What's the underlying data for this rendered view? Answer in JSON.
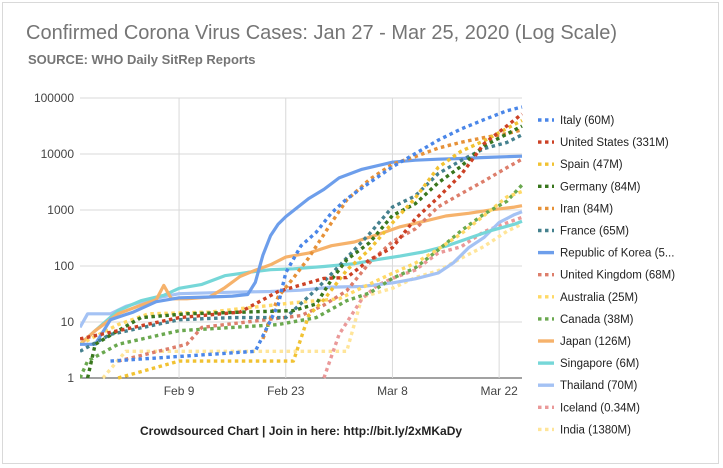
{
  "chart_data": {
    "type": "line",
    "title": "Confirmed Corona Virus Cases: Jan 27 - Mar 25, 2020 (Log Scale)",
    "subtitle": "SOURCE: WHO Daily SitRep Reports",
    "footer": "Crowdsourced Chart | Join in here: http://bit.ly/2xMKaDy",
    "x_scale": "date",
    "y_scale": "log",
    "xlim": [
      "2020-01-27",
      "2020-03-25"
    ],
    "ylim": [
      1,
      100000
    ],
    "x_ticks": [
      {
        "date": "2020-02-09",
        "label": "Feb 9"
      },
      {
        "date": "2020-02-23",
        "label": "Feb 23"
      },
      {
        "date": "2020-03-08",
        "label": "Mar 8"
      },
      {
        "date": "2020-03-22",
        "label": "Mar 22"
      }
    ],
    "y_ticks": [
      {
        "value": 1,
        "label": "1"
      },
      {
        "value": 10,
        "label": "10"
      },
      {
        "value": 100,
        "label": "100"
      },
      {
        "value": 1000,
        "label": "1000"
      },
      {
        "value": 10000,
        "label": "10000"
      },
      {
        "value": 100000,
        "label": "100000"
      }
    ],
    "grid": true,
    "legend_position": "right",
    "series": [
      {
        "name": "Italy (60M)",
        "color": "#4a86e8",
        "style": "dotted",
        "points": [
          [
            "2020-01-31",
            2
          ],
          [
            "2020-02-19",
            3
          ],
          [
            "2020-02-22",
            20
          ],
          [
            "2020-02-23",
            76
          ],
          [
            "2020-02-25",
            229
          ],
          [
            "2020-02-27",
            400
          ],
          [
            "2020-02-29",
            888
          ],
          [
            "2020-03-02",
            1577
          ],
          [
            "2020-03-05",
            3089
          ],
          [
            "2020-03-08",
            5883
          ],
          [
            "2020-03-11",
            10149
          ],
          [
            "2020-03-14",
            17660
          ],
          [
            "2020-03-17",
            27980
          ],
          [
            "2020-03-20",
            41035
          ],
          [
            "2020-03-23",
            59138
          ],
          [
            "2020-03-25",
            69176
          ]
        ]
      },
      {
        "name": "United States (331M)",
        "color": "#cc4125",
        "style": "dotted",
        "points": [
          [
            "2020-01-27",
            5
          ],
          [
            "2020-02-01",
            7
          ],
          [
            "2020-02-09",
            12
          ],
          [
            "2020-02-17",
            15
          ],
          [
            "2020-02-22",
            35
          ],
          [
            "2020-02-28",
            60
          ],
          [
            "2020-03-02",
            62
          ],
          [
            "2020-03-05",
            129
          ],
          [
            "2020-03-08",
            213
          ],
          [
            "2020-03-11",
            696
          ],
          [
            "2020-03-14",
            1678
          ],
          [
            "2020-03-17",
            4226
          ],
          [
            "2020-03-20",
            15219
          ],
          [
            "2020-03-23",
            31573
          ],
          [
            "2020-03-25",
            51914
          ]
        ]
      },
      {
        "name": "Spain (47M)",
        "color": "#f1c232",
        "style": "dotted",
        "points": [
          [
            "2020-02-01",
            1
          ],
          [
            "2020-02-09",
            2
          ],
          [
            "2020-02-24",
            2
          ],
          [
            "2020-02-26",
            13
          ],
          [
            "2020-02-28",
            25
          ],
          [
            "2020-03-02",
            84
          ],
          [
            "2020-03-05",
            198
          ],
          [
            "2020-03-08",
            589
          ],
          [
            "2020-03-11",
            1639
          ],
          [
            "2020-03-14",
            5753
          ],
          [
            "2020-03-17",
            11178
          ],
          [
            "2020-03-20",
            17147
          ],
          [
            "2020-03-23",
            28572
          ],
          [
            "2020-03-25",
            39673
          ]
        ]
      },
      {
        "name": "Germany (84M)",
        "color": "#38761d",
        "style": "dotted",
        "points": [
          [
            "2020-01-28",
            1
          ],
          [
            "2020-01-29",
            4
          ],
          [
            "2020-02-01",
            7
          ],
          [
            "2020-02-04",
            12
          ],
          [
            "2020-02-10",
            14
          ],
          [
            "2020-02-24",
            16
          ],
          [
            "2020-02-27",
            21
          ],
          [
            "2020-02-29",
            57
          ],
          [
            "2020-03-02",
            129
          ],
          [
            "2020-03-05",
            262
          ],
          [
            "2020-03-08",
            795
          ],
          [
            "2020-03-11",
            1296
          ],
          [
            "2020-03-14",
            3062
          ],
          [
            "2020-03-17",
            6012
          ],
          [
            "2020-03-20",
            13957
          ],
          [
            "2020-03-23",
            22672
          ],
          [
            "2020-03-25",
            31554
          ]
        ]
      },
      {
        "name": "Iran (84M)",
        "color": "#e69138",
        "style": "dotted",
        "points": [
          [
            "2020-02-20",
            5
          ],
          [
            "2020-02-22",
            28
          ],
          [
            "2020-02-24",
            61
          ],
          [
            "2020-02-26",
            139
          ],
          [
            "2020-02-29",
            593
          ],
          [
            "2020-03-02",
            1501
          ],
          [
            "2020-03-05",
            3513
          ],
          [
            "2020-03-08",
            6566
          ],
          [
            "2020-03-11",
            9000
          ],
          [
            "2020-03-14",
            12729
          ],
          [
            "2020-03-17",
            16169
          ],
          [
            "2020-03-20",
            19644
          ],
          [
            "2020-03-23",
            23049
          ],
          [
            "2020-03-25",
            27017
          ]
        ]
      },
      {
        "name": "France (65M)",
        "color": "#45818e",
        "style": "dotted",
        "points": [
          [
            "2020-01-27",
            3
          ],
          [
            "2020-01-31",
            6
          ],
          [
            "2020-02-09",
            11
          ],
          [
            "2020-02-16",
            12
          ],
          [
            "2020-02-23",
            12
          ],
          [
            "2020-02-27",
            38
          ],
          [
            "2020-03-01",
            100
          ],
          [
            "2020-03-05",
            377
          ],
          [
            "2020-03-08",
            1126
          ],
          [
            "2020-03-11",
            1784
          ],
          [
            "2020-03-14",
            4469
          ],
          [
            "2020-03-17",
            7652
          ],
          [
            "2020-03-20",
            12475
          ],
          [
            "2020-03-23",
            16018
          ],
          [
            "2020-03-25",
            22025
          ]
        ]
      },
      {
        "name": "Republic of Korea (5...",
        "color": "#6d9eeb",
        "style": "solid",
        "points": [
          [
            "2020-01-27",
            4
          ],
          [
            "2020-01-29",
            4
          ],
          [
            "2020-01-31",
            11
          ],
          [
            "2020-02-03",
            15
          ],
          [
            "2020-02-06",
            23
          ],
          [
            "2020-02-09",
            27
          ],
          [
            "2020-02-13",
            28
          ],
          [
            "2020-02-16",
            29
          ],
          [
            "2020-02-18",
            31
          ],
          [
            "2020-02-19",
            51
          ],
          [
            "2020-02-20",
            156
          ],
          [
            "2020-02-21",
            346
          ],
          [
            "2020-02-22",
            556
          ],
          [
            "2020-02-23",
            763
          ],
          [
            "2020-02-24",
            977
          ],
          [
            "2020-02-26",
            1595
          ],
          [
            "2020-02-28",
            2337
          ],
          [
            "2020-03-01",
            3736
          ],
          [
            "2020-03-04",
            5328
          ],
          [
            "2020-03-08",
            7134
          ],
          [
            "2020-03-11",
            7755
          ],
          [
            "2020-03-14",
            8086
          ],
          [
            "2020-03-17",
            8320
          ],
          [
            "2020-03-20",
            8652
          ],
          [
            "2020-03-23",
            8961
          ],
          [
            "2020-03-25",
            9137
          ]
        ]
      },
      {
        "name": "United Kingdom (68M)",
        "color": "#dd7e6b",
        "style": "dotted",
        "points": [
          [
            "2020-02-01",
            2
          ],
          [
            "2020-02-10",
            4
          ],
          [
            "2020-02-12",
            8
          ],
          [
            "2020-02-15",
            9
          ],
          [
            "2020-02-25",
            13
          ],
          [
            "2020-02-28",
            20
          ],
          [
            "2020-03-02",
            36
          ],
          [
            "2020-03-05",
            115
          ],
          [
            "2020-03-08",
            273
          ],
          [
            "2020-03-11",
            460
          ],
          [
            "2020-03-14",
            1140
          ],
          [
            "2020-03-17",
            1950
          ],
          [
            "2020-03-20",
            3277
          ],
          [
            "2020-03-23",
            5683
          ],
          [
            "2020-03-25",
            8077
          ]
        ]
      },
      {
        "name": "Australia (25M)",
        "color": "#ffd966",
        "style": "dotted",
        "points": [
          [
            "2020-01-27",
            4
          ],
          [
            "2020-02-01",
            9
          ],
          [
            "2020-02-05",
            14
          ],
          [
            "2020-02-13",
            15
          ],
          [
            "2020-02-24",
            22
          ],
          [
            "2020-03-01",
            26
          ],
          [
            "2020-03-04",
            41
          ],
          [
            "2020-03-08",
            74
          ],
          [
            "2020-03-11",
            112
          ],
          [
            "2020-03-14",
            200
          ],
          [
            "2020-03-17",
            375
          ],
          [
            "2020-03-20",
            791
          ],
          [
            "2020-03-23",
            1709
          ],
          [
            "2020-03-25",
            2136
          ]
        ]
      },
      {
        "name": "Canada (38M)",
        "color": "#6aa84f",
        "style": "dotted",
        "points": [
          [
            "2020-01-27",
            1
          ],
          [
            "2020-01-28",
            2
          ],
          [
            "2020-02-01",
            4
          ],
          [
            "2020-02-09",
            7
          ],
          [
            "2020-02-22",
            9
          ],
          [
            "2020-02-27",
            12
          ],
          [
            "2020-03-02",
            24
          ],
          [
            "2020-03-05",
            33
          ],
          [
            "2020-03-08",
            60
          ],
          [
            "2020-03-11",
            93
          ],
          [
            "2020-03-14",
            193
          ],
          [
            "2020-03-17",
            424
          ],
          [
            "2020-03-20",
            846
          ],
          [
            "2020-03-23",
            1430
          ],
          [
            "2020-03-25",
            2790
          ]
        ]
      },
      {
        "name": "Japan (126M)",
        "color": "#f6b26b",
        "style": "solid",
        "points": [
          [
            "2020-01-27",
            4
          ],
          [
            "2020-01-29",
            7
          ],
          [
            "2020-02-01",
            14
          ],
          [
            "2020-02-04",
            20
          ],
          [
            "2020-02-06",
            25
          ],
          [
            "2020-02-07",
            45
          ],
          [
            "2020-02-08",
            26
          ],
          [
            "2020-02-10",
            26
          ],
          [
            "2020-02-13",
            28
          ],
          [
            "2020-02-15",
            41
          ],
          [
            "2020-02-17",
            65
          ],
          [
            "2020-02-19",
            84
          ],
          [
            "2020-02-21",
            105
          ],
          [
            "2020-02-23",
            144
          ],
          [
            "2020-02-26",
            170
          ],
          [
            "2020-02-29",
            230
          ],
          [
            "2020-03-03",
            268
          ],
          [
            "2020-03-06",
            360
          ],
          [
            "2020-03-09",
            502
          ],
          [
            "2020-03-12",
            620
          ],
          [
            "2020-03-15",
            780
          ],
          [
            "2020-03-18",
            873
          ],
          [
            "2020-03-21",
            1007
          ],
          [
            "2020-03-24",
            1128
          ],
          [
            "2020-03-25",
            1193
          ]
        ]
      },
      {
        "name": "Singapore (6M)",
        "color": "#76d7d8",
        "style": "solid",
        "points": [
          [
            "2020-01-27",
            4
          ],
          [
            "2020-01-29",
            7
          ],
          [
            "2020-02-01",
            16
          ],
          [
            "2020-02-04",
            24
          ],
          [
            "2020-02-07",
            30
          ],
          [
            "2020-02-09",
            40
          ],
          [
            "2020-02-12",
            47
          ],
          [
            "2020-02-15",
            67
          ],
          [
            "2020-02-18",
            77
          ],
          [
            "2020-02-21",
            86
          ],
          [
            "2020-02-24",
            89
          ],
          [
            "2020-02-28",
            98
          ],
          [
            "2020-03-03",
            110
          ],
          [
            "2020-03-06",
            130
          ],
          [
            "2020-03-09",
            150
          ],
          [
            "2020-03-12",
            178
          ],
          [
            "2020-03-15",
            226
          ],
          [
            "2020-03-18",
            313
          ],
          [
            "2020-03-21",
            432
          ],
          [
            "2020-03-24",
            558
          ],
          [
            "2020-03-25",
            631
          ]
        ]
      },
      {
        "name": "Thailand (70M)",
        "color": "#a4c2f4",
        "style": "solid",
        "points": [
          [
            "2020-01-27",
            8
          ],
          [
            "2020-01-28",
            14
          ],
          [
            "2020-01-31",
            14
          ],
          [
            "2020-02-02",
            19
          ],
          [
            "2020-02-05",
            25
          ],
          [
            "2020-02-09",
            32
          ],
          [
            "2020-02-16",
            34
          ],
          [
            "2020-02-21",
            35
          ],
          [
            "2020-02-25",
            37
          ],
          [
            "2020-02-29",
            42
          ],
          [
            "2020-03-04",
            43
          ],
          [
            "2020-03-08",
            50
          ],
          [
            "2020-03-11",
            59
          ],
          [
            "2020-03-14",
            75
          ],
          [
            "2020-03-16",
            114
          ],
          [
            "2020-03-18",
            212
          ],
          [
            "2020-03-20",
            322
          ],
          [
            "2020-03-22",
            599
          ],
          [
            "2020-03-24",
            827
          ],
          [
            "2020-03-25",
            934
          ]
        ]
      },
      {
        "name": "Iceland (0.34M)",
        "color": "#ea9999",
        "style": "dotted",
        "points": [
          [
            "2020-02-28",
            1
          ],
          [
            "2020-03-01",
            6
          ],
          [
            "2020-03-04",
            26
          ],
          [
            "2020-03-06",
            45
          ],
          [
            "2020-03-08",
            60
          ],
          [
            "2020-03-11",
            85
          ],
          [
            "2020-03-14",
            171
          ],
          [
            "2020-03-17",
            220
          ],
          [
            "2020-03-20",
            409
          ],
          [
            "2020-03-23",
            588
          ],
          [
            "2020-03-25",
            737
          ]
        ]
      },
      {
        "name": "India (1380M)",
        "color": "#ffe599",
        "style": "dotted",
        "points": [
          [
            "2020-01-30",
            1
          ],
          [
            "2020-02-02",
            3
          ],
          [
            "2020-03-02",
            3
          ],
          [
            "2020-03-04",
            28
          ],
          [
            "2020-03-08",
            40
          ],
          [
            "2020-03-11",
            62
          ],
          [
            "2020-03-14",
            82
          ],
          [
            "2020-03-17",
            137
          ],
          [
            "2020-03-20",
            223
          ],
          [
            "2020-03-23",
            415
          ],
          [
            "2020-03-25",
            562
          ]
        ]
      }
    ]
  }
}
